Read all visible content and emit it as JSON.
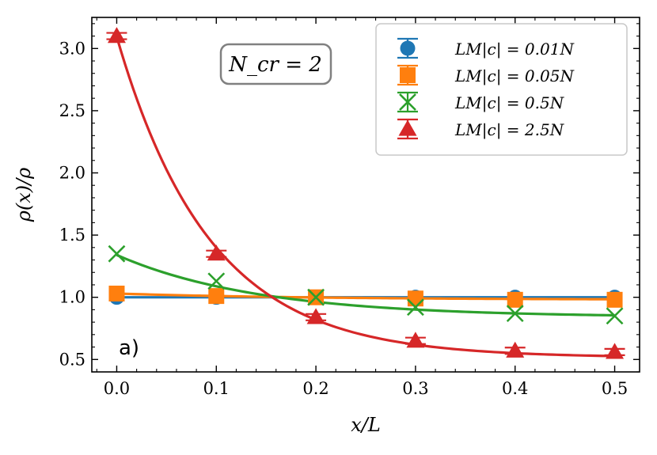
{
  "chart_data": {
    "type": "line",
    "xlabel": "x/L",
    "ylabel": "ρ(x)/ρ",
    "xlim": [
      -0.025,
      0.525
    ],
    "ylim": [
      0.4,
      3.25
    ],
    "x_ticks": [
      "0.0",
      "0.1",
      "0.2",
      "0.3",
      "0.4",
      "0.5"
    ],
    "y_ticks": [
      "0.5",
      "1.0",
      "1.5",
      "2.0",
      "2.5",
      "3.0"
    ],
    "annotation": "N_cr = 2",
    "panel_label": "a)",
    "legend_position": "top-right",
    "series": [
      {
        "name": "LM|c| = 0.01N",
        "color": "#1f77b4",
        "marker": "circle",
        "x": [
          0.0,
          0.1,
          0.2,
          0.3,
          0.4,
          0.5
        ],
        "y": [
          1.0,
          1.0,
          1.0,
          1.0,
          1.0,
          1.0
        ],
        "fit": {
          "a": 0.0,
          "b": 1.0,
          "k": 5
        }
      },
      {
        "name": "LM|c| = 0.05N",
        "color": "#ff7f0e",
        "marker": "square",
        "x": [
          0.0,
          0.1,
          0.2,
          0.3,
          0.4,
          0.5
        ],
        "y": [
          1.03,
          1.01,
          1.0,
          0.99,
          0.98,
          0.98
        ],
        "fit": {
          "a": 0.05,
          "b": 0.98,
          "k": 5
        }
      },
      {
        "name": "LM|c| = 0.5N",
        "color": "#2ca02c",
        "marker": "x",
        "x": [
          0.0,
          0.1,
          0.2,
          0.3,
          0.4,
          0.5
        ],
        "y": [
          1.35,
          1.13,
          1.0,
          0.92,
          0.87,
          0.85
        ],
        "fit": {
          "a": 0.5,
          "b": 0.84,
          "k": 7
        }
      },
      {
        "name": "LM|c| = 2.5N",
        "color": "#d62728",
        "marker": "triangle",
        "x": [
          0.0,
          0.1,
          0.2,
          0.3,
          0.4,
          0.5
        ],
        "y": [
          3.1,
          1.35,
          0.84,
          0.65,
          0.57,
          0.56
        ],
        "fit": {
          "a": 2.58,
          "b": 0.515,
          "k": 10.7
        }
      }
    ]
  }
}
